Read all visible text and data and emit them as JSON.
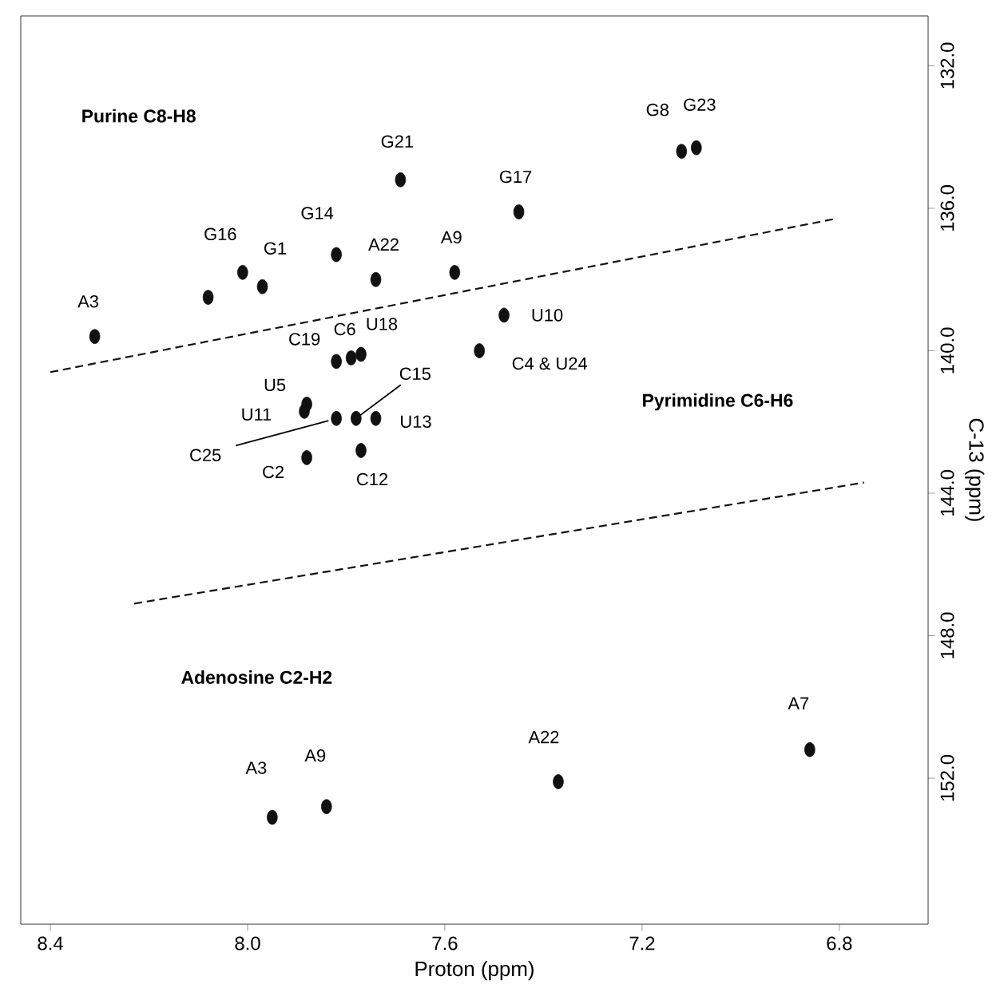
{
  "chart_data": {
    "type": "scatter",
    "xlabel": "Proton (ppm)",
    "ylabel": "C-13 (ppm)",
    "xlim": [
      8.46,
      6.62
    ],
    "ylim": [
      156.1,
      130.6
    ],
    "xticks": [
      {
        "value": 8.4,
        "label": "8.4"
      },
      {
        "value": 8.0,
        "label": "8.0"
      },
      {
        "value": 7.6,
        "label": "7.6"
      },
      {
        "value": 7.2,
        "label": "7.2"
      },
      {
        "value": 6.8,
        "label": "6.8"
      }
    ],
    "yticks": [
      {
        "value": 132,
        "label": "132.0"
      },
      {
        "value": 136,
        "label": "136.0"
      },
      {
        "value": 140,
        "label": "140.0"
      },
      {
        "value": 144,
        "label": "144.0"
      },
      {
        "value": 148,
        "label": "148.0"
      },
      {
        "value": 152,
        "label": "152.0"
      }
    ],
    "grid": false,
    "series": [
      {
        "marker": "circle",
        "color": "#111111",
        "x": [
          8.31,
          8.01,
          7.97,
          8.08,
          7.82,
          7.74,
          7.58,
          7.69,
          7.45,
          7.12,
          7.09,
          7.48,
          7.53,
          7.82,
          7.79,
          7.77,
          7.88,
          7.82,
          7.78,
          7.74,
          7.77,
          7.88,
          7.95,
          7.84,
          7.37,
          6.86,
          7.885
        ],
        "values": [
          139.6,
          137.8,
          138.2,
          138.5,
          137.3,
          138.0,
          137.8,
          135.2,
          136.1,
          134.4,
          134.3,
          139.0,
          140.0,
          140.3,
          140.2,
          140.1,
          141.5,
          141.9,
          141.9,
          141.9,
          142.8,
          143.0,
          153.1,
          152.8,
          152.1,
          151.2,
          141.7
        ]
      },
      {
        "type": "line",
        "line_style": "dashed",
        "color": "#111111",
        "x": [
          8.4,
          6.81
        ],
        "values": [
          140.6,
          136.3
        ]
      },
      {
        "type": "line",
        "line_style": "dashed",
        "color": "#111111",
        "x": [
          8.23,
          6.75
        ],
        "values": [
          147.1,
          143.7
        ]
      }
    ],
    "annotations": [
      "Purine  C8-H8",
      "Pyrimidine  C6-H6",
      "Adenosine  C2-H2",
      {
        "text": "A3",
        "x": 8.31,
        "y": 139.6
      },
      {
        "text": "G16",
        "x": 8.01,
        "y": 137.8
      },
      {
        "text": "G1",
        "x": 7.97,
        "y": 138.2
      },
      {
        "text": "G14",
        "x": 7.82,
        "y": 137.3
      },
      {
        "text": "A22",
        "x": 7.74,
        "y": 138.0
      },
      {
        "text": "A9",
        "x": 7.58,
        "y": 137.8
      },
      {
        "text": "G21",
        "x": 7.69,
        "y": 135.2
      },
      {
        "text": "G17",
        "x": 7.45,
        "y": 136.1
      },
      {
        "text": "G8",
        "x": 7.12,
        "y": 134.4
      },
      {
        "text": "G23",
        "x": 7.09,
        "y": 134.3
      },
      {
        "text": "U10",
        "x": 7.48,
        "y": 139.0
      },
      {
        "text": "C4 & U24",
        "x": 7.53,
        "y": 140.0
      },
      {
        "text": "C19",
        "x": 7.82,
        "y": 140.3
      },
      {
        "text": "C6",
        "x": 7.79,
        "y": 140.2
      },
      {
        "text": "U18",
        "x": 7.77,
        "y": 140.1
      },
      {
        "text": "U5",
        "x": 7.88,
        "y": 141.5
      },
      {
        "text": "U11",
        "x": 7.885,
        "y": 141.7
      },
      {
        "text": "C25",
        "x": 7.82,
        "y": 141.9
      },
      {
        "text": "C15",
        "x": 7.78,
        "y": 141.9
      },
      {
        "text": "U13",
        "x": 7.74,
        "y": 141.9
      },
      {
        "text": "C12",
        "x": 7.77,
        "y": 142.8
      },
      {
        "text": "C2",
        "x": 7.88,
        "y": 143.0
      },
      {
        "text": "A3",
        "x": 7.95,
        "y": 153.1
      },
      {
        "text": "A9",
        "x": 7.84,
        "y": 152.8
      },
      {
        "text": "A22",
        "x": 7.37,
        "y": 152.1
      },
      {
        "text": "A7",
        "x": 6.86,
        "y": 151.2
      }
    ]
  }
}
